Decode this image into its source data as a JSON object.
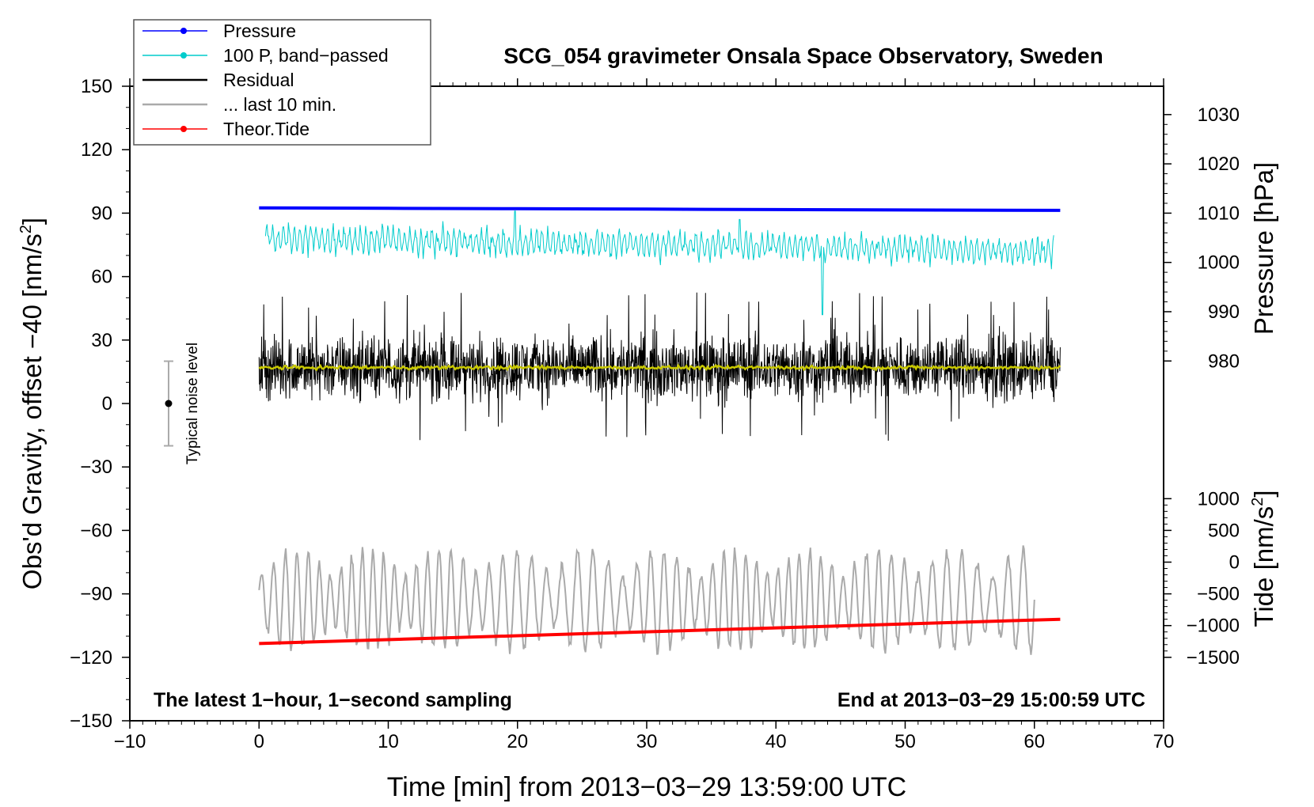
{
  "chart_data": {
    "type": "line",
    "title": "SCG_054 gravimeter Onsala Space Observatory, Sweden",
    "xlabel": "Time [min] from 2013−03−29 13:59:00 UTC",
    "xlim": [
      -10,
      70
    ],
    "xticks": [
      -10,
      0,
      10,
      20,
      30,
      40,
      50,
      60,
      70
    ],
    "xtick_labels": [
      "−10",
      "0",
      "10",
      "20",
      "30",
      "40",
      "50",
      "60",
      "70"
    ],
    "left_axis": {
      "label": "Obs'd Gravity, offset −40 [nm/s",
      "label_sup": "2",
      "label_end": "]",
      "ylim": [
        -150,
        150
      ],
      "ticks": [
        -150,
        -120,
        -90,
        -60,
        -30,
        0,
        30,
        60,
        90,
        120,
        150
      ],
      "tick_labels": [
        "−150",
        "−120",
        "−90",
        "−60",
        "−30",
        "0",
        "30",
        "60",
        "90",
        "120",
        "150"
      ]
    },
    "pressure_axis": {
      "label": "Pressure [hPa]",
      "tick_values": [
        980,
        990,
        1000,
        1010,
        1020,
        1030
      ],
      "tick_labels": [
        "980",
        "990",
        "1000",
        "1010",
        "1020",
        "1030"
      ],
      "gravity_at_1010": 90,
      "gravity_per_hpa": 2.33
    },
    "tide_axis": {
      "label": "Tide [nm/s",
      "label_sup": "2",
      "label_end": "]",
      "tick_values": [
        -1500,
        -1000,
        -500,
        0,
        500,
        1000
      ],
      "tick_labels": [
        "−1500",
        "−1000",
        "−500",
        "0",
        "500",
        "1000"
      ],
      "gravity_at_0": -75,
      "gravity_per_unit": 0.03
    },
    "legend": {
      "position": "top-left",
      "entries": [
        {
          "label": "Pressure",
          "color": "#0000ff",
          "marker": true
        },
        {
          "label": "100 P, band−passed",
          "color": "#00cccc",
          "marker": true
        },
        {
          "label": "Residual",
          "color": "#000000",
          "marker": false
        },
        {
          "label": "... last 10 min.",
          "color": "#aaaaaa",
          "marker": false
        },
        {
          "label": "Theor.Tide",
          "color": "#ff0000",
          "marker": true
        }
      ]
    },
    "series": [
      {
        "name": "Pressure",
        "color": "#0000ff",
        "x": [
          0,
          10,
          20,
          30,
          40,
          50,
          62
        ],
        "y": [
          92.5,
          92.3,
          92.1,
          91.9,
          91.7,
          91.5,
          91.3
        ]
      },
      {
        "name": "100 P, band-passed",
        "color": "#00cccc",
        "x_range": [
          0.5,
          61.5
        ],
        "center": 78,
        "center_end": 72,
        "amplitude": 8
      },
      {
        "name": "Residual",
        "color": "#000000",
        "x_range": [
          0,
          62
        ],
        "center": 17,
        "amplitude": 22
      },
      {
        "name": "Residual smoothed",
        "color": "#c8c800",
        "x_range": [
          0,
          62
        ],
        "y": 17
      },
      {
        "name": "... last 10 min.",
        "color": "#aaaaaa",
        "x_range": [
          0,
          60
        ],
        "center": -93,
        "amplitude": 15
      },
      {
        "name": "Theor.Tide",
        "color": "#ff0000",
        "x": [
          0,
          62
        ],
        "y": [
          -113.5,
          -102
        ]
      }
    ],
    "noise_bar": {
      "label": "Typical noise level",
      "x": -7,
      "y": 0,
      "low": -20,
      "high": 20
    },
    "annotations": {
      "left": "The latest 1−hour, 1−second sampling",
      "right": "End at 2013−03−29 15:00:59 UTC"
    }
  }
}
